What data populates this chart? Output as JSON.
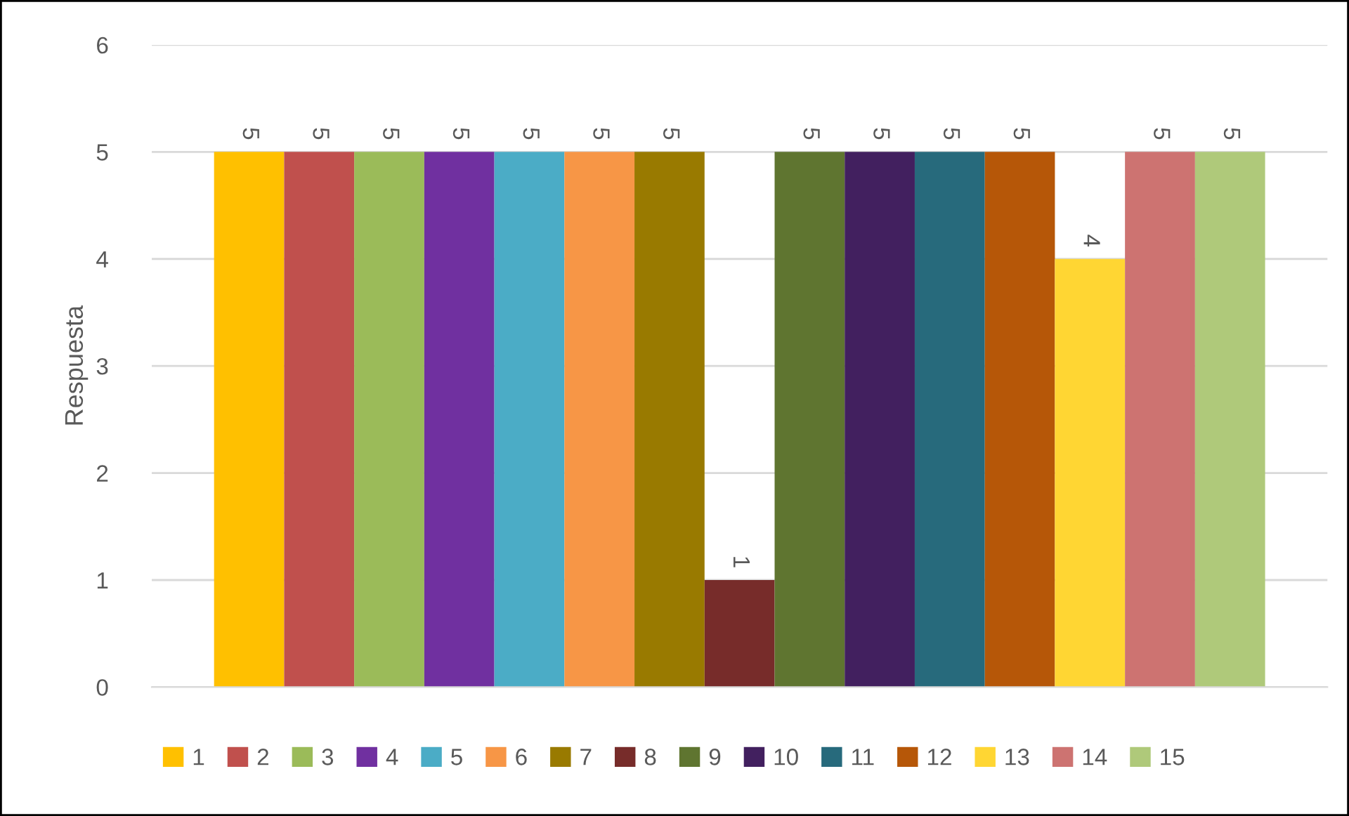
{
  "chart_data": {
    "type": "bar",
    "ylabel": "Respuesta",
    "categories": [
      null
    ],
    "series": [
      {
        "name": "1",
        "color": "#ffc000",
        "values": [
          5
        ]
      },
      {
        "name": "2",
        "color": "#c0504d",
        "values": [
          5
        ]
      },
      {
        "name": "3",
        "color": "#9bbb59",
        "values": [
          5
        ]
      },
      {
        "name": "4",
        "color": "#7030a0",
        "values": [
          5
        ]
      },
      {
        "name": "5",
        "color": "#4bacc6",
        "values": [
          5
        ]
      },
      {
        "name": "6",
        "color": "#f79646",
        "values": [
          5
        ]
      },
      {
        "name": "7",
        "color": "#997a00",
        "values": [
          5
        ]
      },
      {
        "name": "8",
        "color": "#772c2a",
        "values": [
          1
        ]
      },
      {
        "name": "9",
        "color": "#5f7530",
        "values": [
          5
        ]
      },
      {
        "name": "10",
        "color": "#42205f",
        "values": [
          5
        ]
      },
      {
        "name": "11",
        "color": "#276a7c",
        "values": [
          5
        ]
      },
      {
        "name": "12",
        "color": "#b65708",
        "values": [
          5
        ]
      },
      {
        "name": "13",
        "color": "#ffd633",
        "values": [
          4
        ]
      },
      {
        "name": "14",
        "color": "#cd7371",
        "values": [
          5
        ]
      },
      {
        "name": "15",
        "color": "#afc97a",
        "values": [
          5
        ]
      }
    ],
    "ylim": [
      0,
      6
    ],
    "yticks": [
      0,
      1,
      2,
      3,
      4,
      5,
      6
    ],
    "grid": "y",
    "legend": "bottom",
    "data_labels": true
  }
}
